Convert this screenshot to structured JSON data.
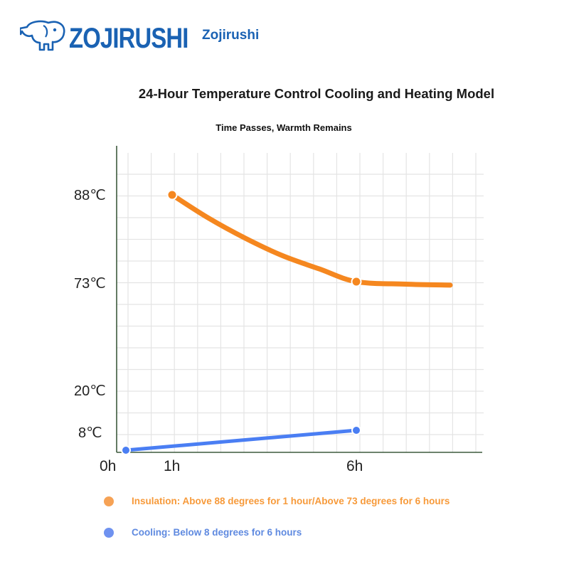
{
  "brand": {
    "logo_icon": "elephant-icon",
    "logo_text": "ZOJIRUSHI",
    "name": "Zojirushi",
    "color": "#1a62b3"
  },
  "chart_data": {
    "type": "line",
    "title": "24-Hour Temperature Control Cooling and Heating Model",
    "subtitle": "Time Passes, Warmth Remains",
    "xlabel": "",
    "ylabel": "",
    "x_tick_labels": [
      "0h",
      "1h",
      "6h"
    ],
    "y_tick_labels": [
      "88℃",
      "73℃",
      "20℃",
      "8℃"
    ],
    "grid": true,
    "series": [
      {
        "key": "insulation",
        "color": "#f5871f",
        "x": [
          1,
          2,
          3,
          4,
          5,
          6,
          7,
          8
        ],
        "y": [
          88,
          84,
          80.5,
          77.5,
          75.2,
          73,
          71.8,
          71.3
        ],
        "marked_points": [
          [
            1,
            88
          ],
          [
            6,
            73
          ]
        ]
      },
      {
        "key": "cooling",
        "color": "#4a7ef3",
        "x": [
          0,
          6
        ],
        "y": [
          0,
          8
        ],
        "marked_points": [
          [
            0,
            0
          ],
          [
            6,
            8
          ]
        ]
      }
    ],
    "legend": [
      {
        "key": "insulation",
        "label": "Insulation: Above 88 degrees for 1 hour/Above 73 degrees for 6 hours",
        "color": "#f79a3a"
      },
      {
        "key": "cooling",
        "label": "Cooling: Below 8 degrees for 6 hours",
        "color": "#5f8ae0"
      }
    ],
    "legend_position": "bottom"
  }
}
